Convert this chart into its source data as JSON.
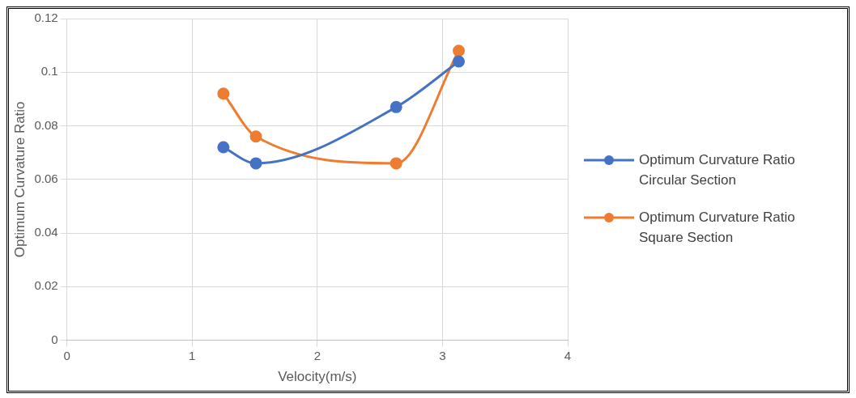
{
  "chart_data": {
    "type": "line",
    "xlabel": "Velocity(m/s)",
    "ylabel": "Optimum Curvature Ratio",
    "xlim": [
      0,
      4
    ],
    "xticks": [
      0,
      1,
      2,
      3,
      4
    ],
    "ylim": [
      0,
      0.12
    ],
    "yticks": [
      0,
      0.02,
      0.04,
      0.06,
      0.08,
      0.1,
      0.12
    ],
    "grid": true,
    "legend": "right",
    "marker": "circle",
    "series": [
      {
        "name": "Optimum Curvature Ratio Circular Section",
        "color": "#4472c4",
        "x": [
          1.25,
          1.51,
          2.63,
          3.13
        ],
        "values": [
          0.072,
          0.066,
          0.087,
          0.104
        ]
      },
      {
        "name": "Optimum Curvature Ratio Square Section",
        "color": "#ed7d31",
        "x": [
          1.25,
          1.51,
          2.63,
          3.13
        ],
        "values": [
          0.092,
          0.076,
          0.066,
          0.108
        ]
      }
    ]
  }
}
